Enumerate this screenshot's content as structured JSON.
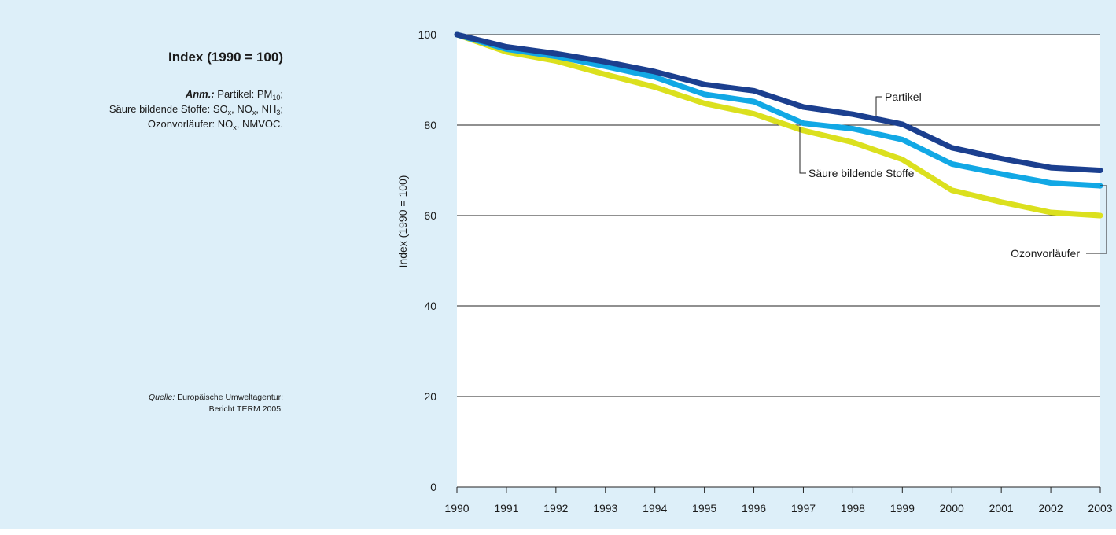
{
  "sidebar": {
    "title": "Index (1990 = 100)",
    "note_prefix": "Anm.:",
    "note_line1": "Partikel: PM",
    "note_line1_sub": "10",
    "note_line1_end": ";",
    "note_line2_a": "Säure bildende Stoffe: SO",
    "note_line2_sub1": "x",
    "note_line2_b": ", NO",
    "note_line2_sub2": "x",
    "note_line2_c": ", NH",
    "note_line2_sub3": "3",
    "note_line2_end": ";",
    "note_line3_a": "Ozonvorläufer: NO",
    "note_line3_sub": "x",
    "note_line3_b": ", NMVOC.",
    "source_label": "Quelle:",
    "source_line1": "Europäische Umweltagentur:",
    "source_line2": "Bericht TERM 2005."
  },
  "chart_data": {
    "type": "line",
    "ylabel": "Index (1990 = 100)",
    "xlabel": "",
    "ylim": [
      0,
      100
    ],
    "yticks": [
      0,
      20,
      40,
      60,
      80,
      100
    ],
    "grid": true,
    "x": [
      "1990",
      "1991",
      "1992",
      "1993",
      "1994",
      "1995",
      "1996",
      "1997",
      "1998",
      "1999",
      "2000",
      "2001",
      "2002",
      "2003"
    ],
    "series": [
      {
        "name": "Partikel",
        "color": "#1b3f8f",
        "values": [
          100,
          97.3,
          95.8,
          94.0,
          91.8,
          89.0,
          87.6,
          84.0,
          82.4,
          80.2,
          75.0,
          72.6,
          70.6,
          70.0
        ]
      },
      {
        "name": "Säure bildende Stoffe",
        "color": "#12a8e5",
        "values": [
          100,
          96.8,
          95.2,
          93.0,
          90.6,
          86.8,
          85.2,
          80.4,
          79.2,
          76.8,
          71.4,
          69.2,
          67.2,
          66.6
        ]
      },
      {
        "name": "Ozonvorläufer",
        "color": "#dbe01e",
        "values": [
          100,
          96.2,
          94.2,
          91.2,
          88.4,
          84.8,
          82.5,
          78.8,
          76.2,
          72.4,
          65.6,
          63.0,
          60.7,
          60.0
        ]
      }
    ]
  }
}
